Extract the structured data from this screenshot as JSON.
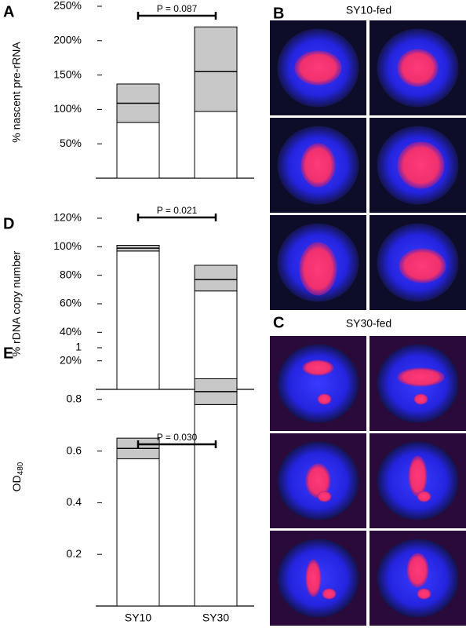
{
  "chart_data": [
    {
      "type": "box",
      "panel_label": "A",
      "y_label": "% nascent pre-rRNA",
      "categories": [
        null,
        null
      ],
      "values": [
        109,
        155
      ],
      "lower": [
        81,
        97
      ],
      "upper": [
        137,
        220
      ],
      "ylim": [
        0,
        250
      ],
      "yticks": [
        {
          "value": 50,
          "label": "50%"
        },
        {
          "value": 100,
          "label": "100%"
        },
        {
          "value": 150,
          "label": "150%"
        },
        {
          "value": 200,
          "label": "200%"
        },
        {
          "value": 250,
          "label": "250%"
        }
      ],
      "annotation": "P = 0.087"
    },
    {
      "type": "box",
      "panel_label": "D",
      "y_label": "% rDNA copy number",
      "categories": [
        null,
        null
      ],
      "values": [
        99,
        77
      ],
      "lower": [
        97,
        69
      ],
      "upper": [
        101,
        87
      ],
      "ylim": [
        0,
        120
      ],
      "yticks": [
        {
          "value": 20,
          "label": "20%"
        },
        {
          "value": 40,
          "label": "40%"
        },
        {
          "value": 60,
          "label": "60%"
        },
        {
          "value": 80,
          "label": "80%"
        },
        {
          "value": 100,
          "label": "100%"
        },
        {
          "value": 120,
          "label": "120%"
        }
      ],
      "annotation": "P = 0.021"
    },
    {
      "type": "box",
      "panel_label": "E",
      "y_label": "OD",
      "y_label_sub": "480",
      "categories": [
        "SY10",
        "SY30"
      ],
      "values": [
        0.61,
        0.83
      ],
      "lower": [
        0.57,
        0.78
      ],
      "upper": [
        0.65,
        0.88
      ],
      "ylim": [
        0,
        1
      ],
      "yticks": [
        0.2,
        0.4,
        0.6,
        0.8,
        1
      ],
      "annotation": "P = 0.030"
    }
  ],
  "micrographs": [
    {
      "panel_label": "B",
      "title": "SY10-fed"
    },
    {
      "panel_label": "C",
      "title": "SY30-fed"
    }
  ]
}
